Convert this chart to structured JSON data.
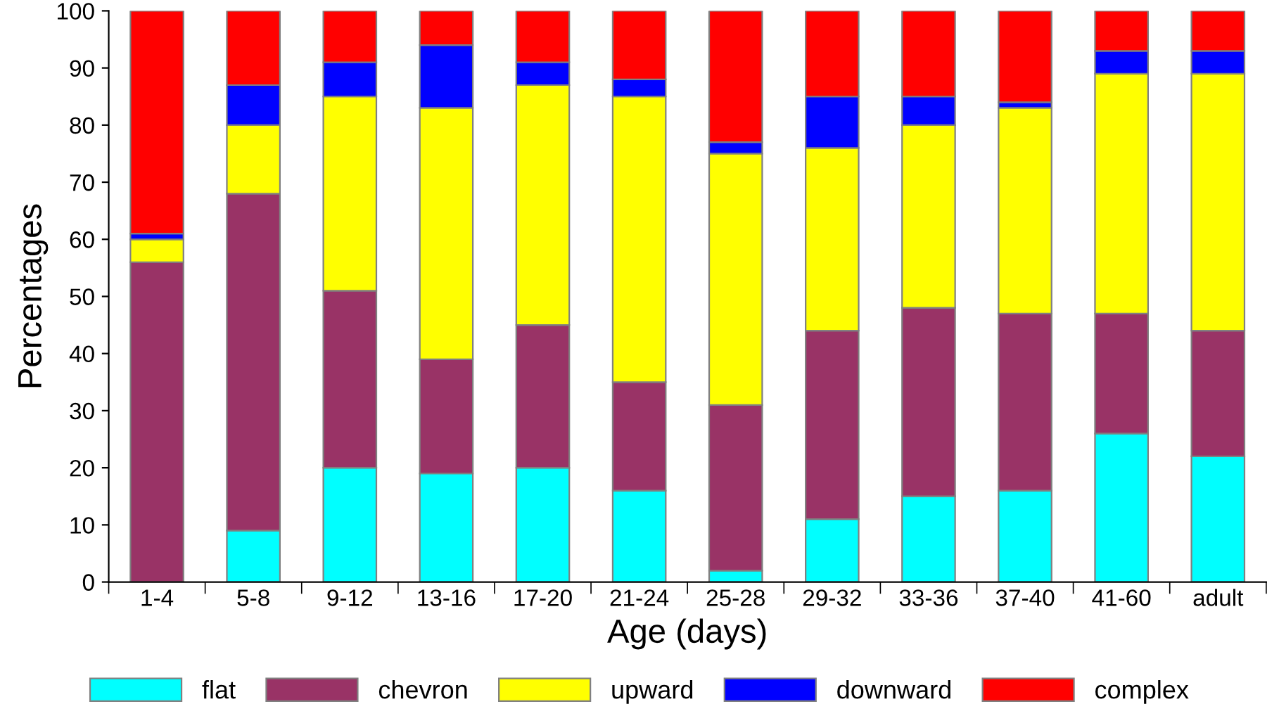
{
  "chart_data": {
    "type": "bar",
    "stacked": true,
    "xlabel": "Age (days)",
    "ylabel": "Percentages",
    "categories": [
      "1-4",
      "5-8",
      "9-12",
      "13-16",
      "17-20",
      "21-24",
      "25-28",
      "29-32",
      "33-36",
      "37-40",
      "41-60",
      "adult"
    ],
    "series": [
      {
        "name": "flat",
        "color": "#00ffff",
        "values": [
          0,
          9,
          20,
          19,
          20,
          16,
          2,
          11,
          15,
          16,
          26,
          22
        ]
      },
      {
        "name": "chevron",
        "color": "#993366",
        "values": [
          56,
          59,
          31,
          20,
          25,
          19,
          29,
          33,
          33,
          31,
          21,
          22
        ]
      },
      {
        "name": "upward",
        "color": "#ffff00",
        "values": [
          4,
          12,
          34,
          44,
          42,
          50,
          44,
          32,
          32,
          36,
          42,
          45
        ]
      },
      {
        "name": "downward",
        "color": "#0000ff",
        "values": [
          1,
          7,
          6,
          11,
          4,
          3,
          2,
          9,
          5,
          1,
          4,
          4
        ]
      },
      {
        "name": "complex",
        "color": "#ff0000",
        "values": [
          39,
          13,
          9,
          6,
          9,
          12,
          23,
          15,
          15,
          16,
          7,
          7
        ]
      }
    ],
    "ylim": [
      0,
      100
    ],
    "yticks": [
      0,
      10,
      20,
      30,
      40,
      50,
      60,
      70,
      80,
      90,
      100
    ],
    "grid": false,
    "legend": "bottom"
  }
}
